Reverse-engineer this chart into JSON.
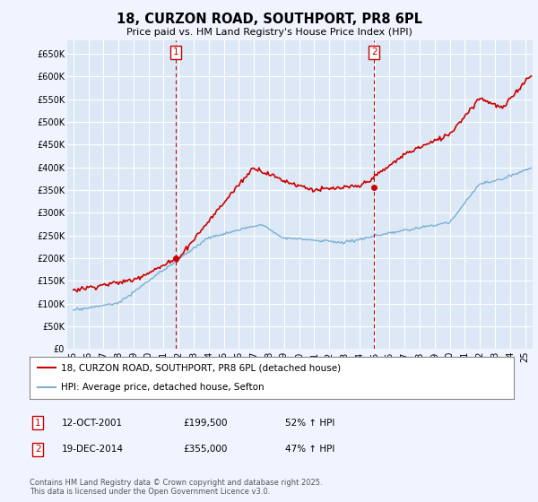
{
  "title": "18, CURZON ROAD, SOUTHPORT, PR8 6PL",
  "subtitle": "Price paid vs. HM Land Registry's House Price Index (HPI)",
  "bg_color": "#f0f4ff",
  "plot_bg_color": "#dce8f5",
  "grid_color": "#ffffff",
  "red_color": "#cc0000",
  "blue_color": "#7bafd4",
  "marker1_x": 2001.79,
  "marker1_y": 199500,
  "marker2_x": 2014.97,
  "marker2_y": 355000,
  "legend_line1": "18, CURZON ROAD, SOUTHPORT, PR8 6PL (detached house)",
  "legend_line2": "HPI: Average price, detached house, Sefton",
  "table_row1": [
    "1",
    "12-OCT-2001",
    "£199,500",
    "52% ↑ HPI"
  ],
  "table_row2": [
    "2",
    "19-DEC-2014",
    "£355,000",
    "47% ↑ HPI"
  ],
  "footer": "Contains HM Land Registry data © Crown copyright and database right 2025.\nThis data is licensed under the Open Government Licence v3.0.",
  "ylim": [
    0,
    680000
  ],
  "xlim": [
    1994.6,
    2025.5
  ],
  "yticks": [
    0,
    50000,
    100000,
    150000,
    200000,
    250000,
    300000,
    350000,
    400000,
    450000,
    500000,
    550000,
    600000,
    650000
  ],
  "ytick_labels": [
    "£0",
    "£50K",
    "£100K",
    "£150K",
    "£200K",
    "£250K",
    "£300K",
    "£350K",
    "£400K",
    "£450K",
    "£500K",
    "£550K",
    "£600K",
    "£650K"
  ],
  "xticks": [
    1995,
    1996,
    1997,
    1998,
    1999,
    2000,
    2001,
    2002,
    2003,
    2004,
    2005,
    2006,
    2007,
    2008,
    2009,
    2010,
    2011,
    2012,
    2013,
    2014,
    2015,
    2016,
    2017,
    2018,
    2019,
    2020,
    2021,
    2022,
    2023,
    2024,
    2025
  ],
  "xtick_labels": [
    "95",
    "96",
    "97",
    "98",
    "99",
    "00",
    "01",
    "02",
    "03",
    "04",
    "05",
    "06",
    "07",
    "08",
    "09",
    "10",
    "11",
    "12",
    "13",
    "14",
    "15",
    "16",
    "17",
    "18",
    "19",
    "20",
    "21",
    "22",
    "23",
    "24",
    "25"
  ]
}
